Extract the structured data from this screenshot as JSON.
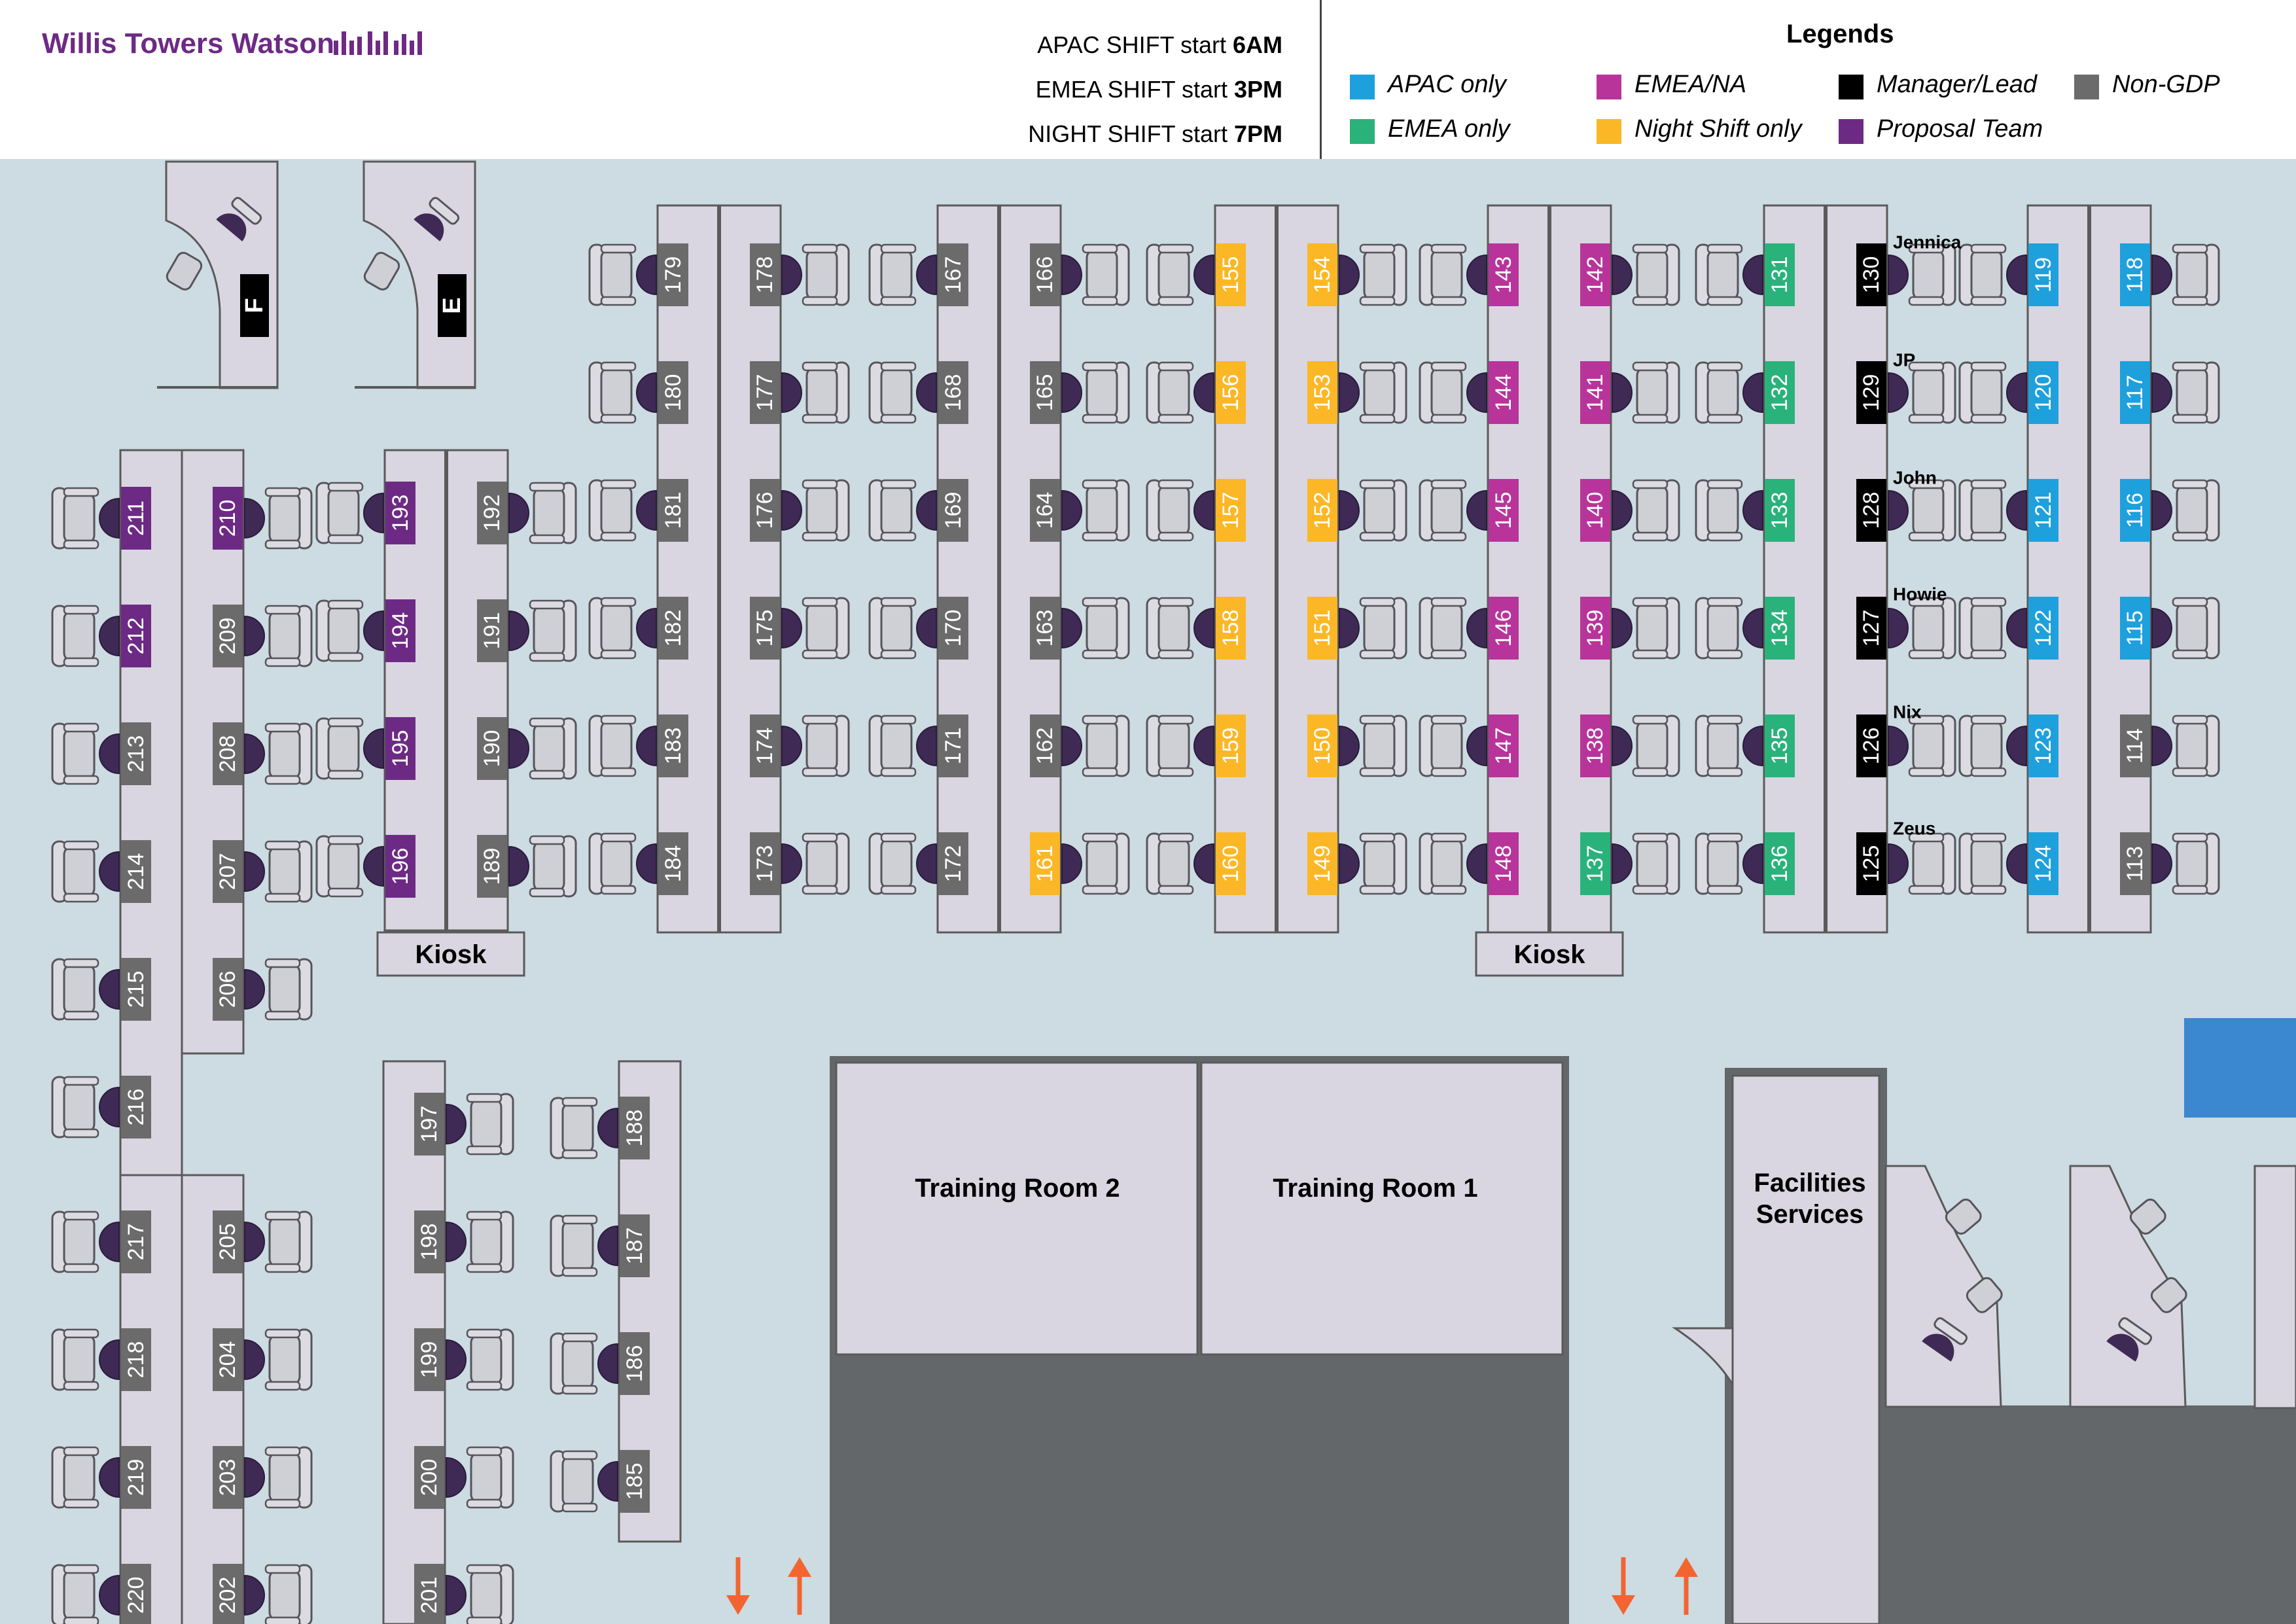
{
  "header": {
    "brand": "Willis Towers Watson",
    "shifts": [
      {
        "label": "APAC SHIFT start ",
        "time": "6AM"
      },
      {
        "label": "EMEA SHIFT start ",
        "time": "3PM"
      },
      {
        "label": "NIGHT SHIFT start ",
        "time": "7PM"
      }
    ]
  },
  "legend": {
    "title": "Legends",
    "items": [
      {
        "key": "apac",
        "label": "APAC only",
        "color": "#1ea0dc"
      },
      {
        "key": "emea",
        "label": "EMEA only",
        "color": "#2ab27b"
      },
      {
        "key": "emeana",
        "label": "EMEA/NA",
        "color": "#b8349a"
      },
      {
        "key": "night",
        "label": "Night Shift only",
        "color": "#fbb726"
      },
      {
        "key": "manager",
        "label": "Manager/Lead",
        "color": "#000000"
      },
      {
        "key": "proposal",
        "label": "Proposal Team",
        "color": "#6d2a84"
      },
      {
        "key": "nongdp",
        "label": "Non-GDP",
        "color": "#6b6b6b"
      }
    ]
  },
  "colors": {
    "floor": "#cddbe2",
    "desk": "#d9d6e1",
    "outline": "#5a5a5a",
    "room_dark": "#636769",
    "arrow": "#f26531",
    "blue_box": "#3b87d0"
  },
  "rooms": {
    "training_room_2": "Training Room 2",
    "training_room_1": "Training Room 1",
    "facilities": [
      "Facilities",
      "Services"
    ],
    "kiosk_1": "Kiosk",
    "kiosk_2": "Kiosk"
  },
  "offices": [
    {
      "label": "F",
      "color": "#000000"
    },
    {
      "label": "E",
      "color": "#000000"
    }
  ],
  "occupants": [
    {
      "seat": "130",
      "name": "Jennica"
    },
    {
      "seat": "129",
      "name": "JP"
    },
    {
      "seat": "128",
      "name": "John"
    },
    {
      "seat": "127",
      "name": "Howie"
    },
    {
      "seat": "126",
      "name": "Nix"
    },
    {
      "seat": "125",
      "name": "Zeus"
    }
  ],
  "seats": [
    {
      "id": "179",
      "type": "nongdp"
    },
    {
      "id": "180",
      "type": "nongdp"
    },
    {
      "id": "181",
      "type": "nongdp"
    },
    {
      "id": "182",
      "type": "nongdp"
    },
    {
      "id": "183",
      "type": "nongdp"
    },
    {
      "id": "184",
      "type": "nongdp"
    },
    {
      "id": "178",
      "type": "nongdp"
    },
    {
      "id": "177",
      "type": "nongdp"
    },
    {
      "id": "176",
      "type": "nongdp"
    },
    {
      "id": "175",
      "type": "nongdp"
    },
    {
      "id": "174",
      "type": "nongdp"
    },
    {
      "id": "173",
      "type": "nongdp"
    },
    {
      "id": "167",
      "type": "nongdp"
    },
    {
      "id": "168",
      "type": "nongdp"
    },
    {
      "id": "169",
      "type": "nongdp"
    },
    {
      "id": "170",
      "type": "nongdp"
    },
    {
      "id": "171",
      "type": "nongdp"
    },
    {
      "id": "172",
      "type": "nongdp"
    },
    {
      "id": "166",
      "type": "nongdp"
    },
    {
      "id": "165",
      "type": "nongdp"
    },
    {
      "id": "164",
      "type": "nongdp"
    },
    {
      "id": "163",
      "type": "nongdp"
    },
    {
      "id": "162",
      "type": "nongdp"
    },
    {
      "id": "161",
      "type": "night"
    },
    {
      "id": "155",
      "type": "night"
    },
    {
      "id": "156",
      "type": "night"
    },
    {
      "id": "157",
      "type": "night"
    },
    {
      "id": "158",
      "type": "night"
    },
    {
      "id": "159",
      "type": "night"
    },
    {
      "id": "160",
      "type": "night"
    },
    {
      "id": "154",
      "type": "night"
    },
    {
      "id": "153",
      "type": "night"
    },
    {
      "id": "152",
      "type": "night"
    },
    {
      "id": "151",
      "type": "night"
    },
    {
      "id": "150",
      "type": "night"
    },
    {
      "id": "149",
      "type": "night"
    },
    {
      "id": "143",
      "type": "emeana"
    },
    {
      "id": "144",
      "type": "emeana"
    },
    {
      "id": "145",
      "type": "emeana"
    },
    {
      "id": "146",
      "type": "emeana"
    },
    {
      "id": "147",
      "type": "emeana"
    },
    {
      "id": "148",
      "type": "emeana"
    },
    {
      "id": "142",
      "type": "emeana"
    },
    {
      "id": "141",
      "type": "emeana"
    },
    {
      "id": "140",
      "type": "emeana"
    },
    {
      "id": "139",
      "type": "emeana"
    },
    {
      "id": "138",
      "type": "emeana"
    },
    {
      "id": "137",
      "type": "emea"
    },
    {
      "id": "131",
      "type": "emea"
    },
    {
      "id": "132",
      "type": "emea"
    },
    {
      "id": "133",
      "type": "emea"
    },
    {
      "id": "134",
      "type": "emea"
    },
    {
      "id": "135",
      "type": "emea"
    },
    {
      "id": "136",
      "type": "emea"
    },
    {
      "id": "130",
      "type": "manager"
    },
    {
      "id": "129",
      "type": "manager"
    },
    {
      "id": "128",
      "type": "manager"
    },
    {
      "id": "127",
      "type": "manager"
    },
    {
      "id": "126",
      "type": "manager"
    },
    {
      "id": "125",
      "type": "manager"
    },
    {
      "id": "119",
      "type": "apac"
    },
    {
      "id": "120",
      "type": "apac"
    },
    {
      "id": "121",
      "type": "apac"
    },
    {
      "id": "122",
      "type": "apac"
    },
    {
      "id": "123",
      "type": "apac"
    },
    {
      "id": "124",
      "type": "apac"
    },
    {
      "id": "118",
      "type": "apac"
    },
    {
      "id": "117",
      "type": "apac"
    },
    {
      "id": "116",
      "type": "apac"
    },
    {
      "id": "115",
      "type": "apac"
    },
    {
      "id": "114",
      "type": "nongdp"
    },
    {
      "id": "113",
      "type": "nongdp"
    },
    {
      "id": "193",
      "type": "proposal"
    },
    {
      "id": "194",
      "type": "proposal"
    },
    {
      "id": "195",
      "type": "proposal"
    },
    {
      "id": "196",
      "type": "proposal"
    },
    {
      "id": "192",
      "type": "nongdp"
    },
    {
      "id": "191",
      "type": "nongdp"
    },
    {
      "id": "190",
      "type": "nongdp"
    },
    {
      "id": "189",
      "type": "nongdp"
    },
    {
      "id": "211",
      "type": "proposal"
    },
    {
      "id": "212",
      "type": "proposal"
    },
    {
      "id": "213",
      "type": "nongdp"
    },
    {
      "id": "214",
      "type": "nongdp"
    },
    {
      "id": "215",
      "type": "nongdp"
    },
    {
      "id": "216",
      "type": "nongdp"
    },
    {
      "id": "210",
      "type": "proposal"
    },
    {
      "id": "209",
      "type": "nongdp"
    },
    {
      "id": "208",
      "type": "nongdp"
    },
    {
      "id": "207",
      "type": "nongdp"
    },
    {
      "id": "206",
      "type": "nongdp"
    },
    {
      "id": "217",
      "type": "nongdp"
    },
    {
      "id": "218",
      "type": "nongdp"
    },
    {
      "id": "219",
      "type": "nongdp"
    },
    {
      "id": "220",
      "type": "nongdp"
    },
    {
      "id": "205",
      "type": "nongdp"
    },
    {
      "id": "204",
      "type": "nongdp"
    },
    {
      "id": "203",
      "type": "nongdp"
    },
    {
      "id": "202",
      "type": "nongdp"
    },
    {
      "id": "197",
      "type": "nongdp"
    },
    {
      "id": "198",
      "type": "nongdp"
    },
    {
      "id": "199",
      "type": "nongdp"
    },
    {
      "id": "200",
      "type": "nongdp"
    },
    {
      "id": "201",
      "type": "nongdp"
    },
    {
      "id": "188",
      "type": "nongdp"
    },
    {
      "id": "187",
      "type": "nongdp"
    },
    {
      "id": "186",
      "type": "nongdp"
    },
    {
      "id": "185",
      "type": "nongdp"
    }
  ]
}
